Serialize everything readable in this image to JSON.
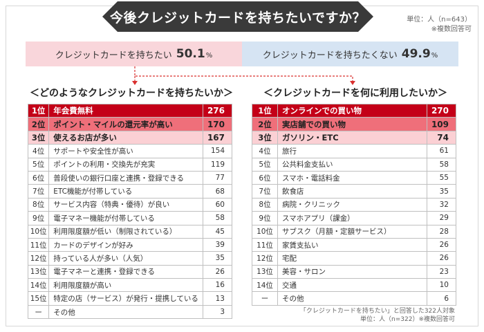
{
  "title": "今後クレジットカードを持ちたいですか？",
  "unit_top": [
    "単位：人（n=643）",
    "※複数回答可"
  ],
  "ratio": {
    "yes": {
      "label": "クレジットカードを持ちたい",
      "value": "50.1",
      "pct": "%"
    },
    "no": {
      "label": "クレジットカードを持ちたくない",
      "value": "49.9",
      "pct": "%"
    }
  },
  "left_title": "＜どのようなクレジットカードを持ちたいか＞",
  "right_title": "＜クレジットカードを何に利用したいか＞",
  "colors": {
    "rank1": "#c40018",
    "rank2": "#ef6f7a",
    "rank3": "#fbd0d4",
    "yes_bg": "#f9d6db",
    "no_bg": "#d6e4f3",
    "banner": "#3a3a3a"
  },
  "chart_data": [
    {
      "type": "table",
      "title": "＜どのようなクレジットカードを持ちたいか＞",
      "rows": [
        {
          "rank": "1位",
          "label": "年会費無料",
          "value": "276"
        },
        {
          "rank": "2位",
          "label": "ポイント・マイルの還元率が高い",
          "value": "170"
        },
        {
          "rank": "3位",
          "label": "使えるお店が多い",
          "value": "167"
        },
        {
          "rank": "4位",
          "label": "サポートや安全性が高い",
          "value": "154"
        },
        {
          "rank": "5位",
          "label": "ポイントの利用・交換先が充実",
          "value": "119"
        },
        {
          "rank": "6位",
          "label": "普段使いの銀行口座と連携・登録できる",
          "value": "77"
        },
        {
          "rank": "7位",
          "label": "ETC機能が付帯している",
          "value": "68"
        },
        {
          "rank": "8位",
          "label": "サービス内容（特典・優待）が良い",
          "value": "60"
        },
        {
          "rank": "9位",
          "label": "電子マネー機能が付帯している",
          "value": "58"
        },
        {
          "rank": "10位",
          "label": "利用限度額が低い（制限されている）",
          "value": "45"
        },
        {
          "rank": "11位",
          "label": "カードのデザインが好み",
          "value": "39"
        },
        {
          "rank": "12位",
          "label": "持っている人が多い（人気）",
          "value": "35"
        },
        {
          "rank": "13位",
          "label": "電子マネーと連携・登録できる",
          "value": "26"
        },
        {
          "rank": "14位",
          "label": "利用限度額が高い",
          "value": "16"
        },
        {
          "rank": "15位",
          "label": "特定の店（サービス）が発行・提携している",
          "value": "13"
        },
        {
          "rank": "ー",
          "label": "その他",
          "value": "3"
        }
      ]
    },
    {
      "type": "table",
      "title": "＜クレジットカードを何に利用したいか＞",
      "rows": [
        {
          "rank": "1位",
          "label": "オンラインでの買い物",
          "value": "270"
        },
        {
          "rank": "2位",
          "label": "実店舗での買い物",
          "value": "109"
        },
        {
          "rank": "3位",
          "label": "ガソリン・ETC",
          "value": "74"
        },
        {
          "rank": "4位",
          "label": "旅行",
          "value": "61"
        },
        {
          "rank": "5位",
          "label": "公共料金支払い",
          "value": "58"
        },
        {
          "rank": "6位",
          "label": "スマホ・電話料金",
          "value": "55"
        },
        {
          "rank": "7位",
          "label": "飲食店",
          "value": "35"
        },
        {
          "rank": "8位",
          "label": "病院・クリニック",
          "value": "32"
        },
        {
          "rank": "9位",
          "label": "スマホアプリ（課金）",
          "value": "29"
        },
        {
          "rank": "10位",
          "label": "サブスク（月額・定額サービス）",
          "value": "28"
        },
        {
          "rank": "11位",
          "label": "家賃支払い",
          "value": "26"
        },
        {
          "rank": "12位",
          "label": "宅配",
          "value": "26"
        },
        {
          "rank": "13位",
          "label": "美容・サロン",
          "value": "23"
        },
        {
          "rank": "14位",
          "label": "交通",
          "value": "10"
        },
        {
          "rank": "ー",
          "label": "その他",
          "value": "6"
        }
      ]
    }
  ],
  "note_bottom": [
    "「クレジットカードを持ちたい」と回答した322人対象",
    "単位：人（n=322）※複数回答可"
  ]
}
